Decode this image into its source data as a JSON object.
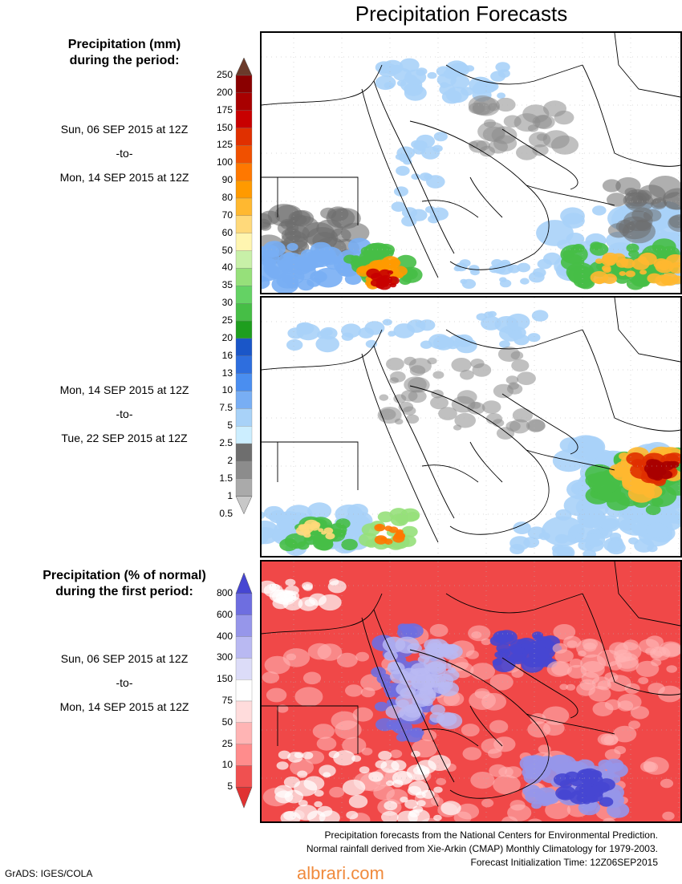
{
  "title": "Precipitation Forecasts",
  "legend_mm": {
    "header": [
      "Precipitation (mm)",
      "during the period:"
    ],
    "levels": [
      "250",
      "200",
      "175",
      "150",
      "125",
      "100",
      "90",
      "80",
      "70",
      "60",
      "50",
      "40",
      "35",
      "30",
      "25",
      "20",
      "16",
      "13",
      "10",
      "7.5",
      "5",
      "2.5",
      "2",
      "1.5",
      "1",
      "0.5"
    ],
    "colors": [
      "#6b3a2a",
      "#8a0000",
      "#a80000",
      "#c80000",
      "#e03000",
      "#f05000",
      "#ff7800",
      "#ff9a00",
      "#ffb830",
      "#ffd97a",
      "#fff5b0",
      "#c8f0a8",
      "#96e07a",
      "#64d264",
      "#46be46",
      "#1e9e1e",
      "#1a56c8",
      "#2e6ede",
      "#4a8ef0",
      "#78aef4",
      "#a8d2f8",
      "#cceeff",
      "#6e6e6e",
      "#8c8c8c",
      "#aaaaaa",
      "#c8c8c8"
    ]
  },
  "legend_pct": {
    "header": [
      "Precipitation (% of normal)",
      "during the first period:"
    ],
    "levels": [
      "800",
      "600",
      "400",
      "300",
      "150",
      "75",
      "50",
      "25",
      "10",
      "5"
    ],
    "colors": [
      "#4646d2",
      "#6e6ee0",
      "#9696ea",
      "#b9b9f2",
      "#dcdcf8",
      "#ffffff",
      "#ffdcdc",
      "#ffb4b4",
      "#ff8c8c",
      "#f05050",
      "#e03232"
    ]
  },
  "periods": [
    {
      "start": "Sun, 06 SEP 2015 at 12Z",
      "sep": "-to-",
      "end": "Mon, 14 SEP 2015 at 12Z"
    },
    {
      "start": "Mon, 14 SEP 2015 at 12Z",
      "sep": "-to-",
      "end": "Tue, 22 SEP 2015 at 12Z"
    },
    {
      "start": "Sun, 06 SEP 2015 at 12Z",
      "sep": "-to-",
      "end": "Mon, 14 SEP 2015 at 12Z"
    }
  ],
  "footer": [
    "Precipitation forecasts from the National Centers for Environmental Prediction.",
    "Normal rainfall derived from Xie-Arkin (CMAP) Monthly Climatology for 1979-2003.",
    "Forecast Initialization Time: 12Z06SEP2015"
  ],
  "credit": "GrADS: IGES/COLA",
  "watermark": "albrari.com",
  "map_colors": {
    "land": "#ffffff",
    "border": "#000000",
    "grid": "#b4b4b4",
    "pct_dry": "#f04848",
    "pct_wet": "#5050dc"
  }
}
